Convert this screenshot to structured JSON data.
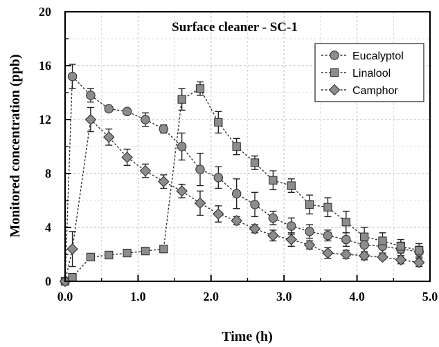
{
  "chart_data": {
    "type": "line",
    "title": "Surface cleaner - SC-1",
    "xlabel": "Time (h)",
    "ylabel": "Monitored concentration (ppb)",
    "xlim": [
      0,
      5
    ],
    "ylim": [
      0,
      20
    ],
    "x_ticks": [
      "0.0",
      "1.0",
      "2.0",
      "3.0",
      "4.0",
      "5.0"
    ],
    "y_ticks": [
      "0",
      "4",
      "8",
      "12",
      "16",
      "20"
    ],
    "grid": true,
    "legend_position": "top-right",
    "series": [
      {
        "name": "Eucalyptol",
        "marker": "circle",
        "points": [
          {
            "x": 0.0,
            "y": 0.0,
            "err": 0.0
          },
          {
            "x": 0.1,
            "y": 15.2,
            "err": 0.9
          },
          {
            "x": 0.35,
            "y": 13.8,
            "err": 0.5
          },
          {
            "x": 0.6,
            "y": 12.8,
            "err": 0.0
          },
          {
            "x": 0.85,
            "y": 12.6,
            "err": 0.0
          },
          {
            "x": 1.1,
            "y": 12.0,
            "err": 0.5
          },
          {
            "x": 1.35,
            "y": 11.3,
            "err": 0.3
          },
          {
            "x": 1.6,
            "y": 10.0,
            "err": 1.0
          },
          {
            "x": 1.85,
            "y": 8.3,
            "err": 1.2
          },
          {
            "x": 2.1,
            "y": 7.7,
            "err": 0.8
          },
          {
            "x": 2.35,
            "y": 6.5,
            "err": 1.1
          },
          {
            "x": 2.6,
            "y": 5.7,
            "err": 0.9
          },
          {
            "x": 2.85,
            "y": 4.7,
            "err": 0.5
          },
          {
            "x": 3.1,
            "y": 4.1,
            "err": 0.6
          },
          {
            "x": 3.35,
            "y": 3.7,
            "err": 0.5
          },
          {
            "x": 3.6,
            "y": 3.4,
            "err": 0.4
          },
          {
            "x": 3.85,
            "y": 3.1,
            "err": 0.5
          },
          {
            "x": 4.1,
            "y": 2.7,
            "err": 0.6
          },
          {
            "x": 4.35,
            "y": 2.6,
            "err": 0.5
          },
          {
            "x": 4.6,
            "y": 2.4,
            "err": 0.5
          },
          {
            "x": 4.85,
            "y": 2.2,
            "err": 0.4
          }
        ]
      },
      {
        "name": "Linalool",
        "marker": "square",
        "points": [
          {
            "x": 0.0,
            "y": 0.0,
            "err": 0.0
          },
          {
            "x": 0.1,
            "y": 0.3,
            "err": 0.0
          },
          {
            "x": 0.35,
            "y": 1.8,
            "err": 0.0
          },
          {
            "x": 0.6,
            "y": 1.95,
            "err": 0.0
          },
          {
            "x": 0.85,
            "y": 2.1,
            "err": 0.0
          },
          {
            "x": 1.1,
            "y": 2.25,
            "err": 0.0
          },
          {
            "x": 1.35,
            "y": 2.4,
            "err": 0.0
          },
          {
            "x": 1.6,
            "y": 13.5,
            "err": 0.8
          },
          {
            "x": 1.85,
            "y": 14.3,
            "err": 0.5
          },
          {
            "x": 2.1,
            "y": 11.8,
            "err": 0.8
          },
          {
            "x": 2.35,
            "y": 10.0,
            "err": 0.6
          },
          {
            "x": 2.6,
            "y": 8.8,
            "err": 0.5
          },
          {
            "x": 2.85,
            "y": 7.5,
            "err": 0.7
          },
          {
            "x": 3.1,
            "y": 7.1,
            "err": 0.5
          },
          {
            "x": 3.35,
            "y": 5.7,
            "err": 0.7
          },
          {
            "x": 3.6,
            "y": 5.5,
            "err": 0.7
          },
          {
            "x": 3.85,
            "y": 4.4,
            "err": 0.8
          },
          {
            "x": 4.1,
            "y": 3.3,
            "err": 0.7
          },
          {
            "x": 4.35,
            "y": 3.0,
            "err": 0.6
          },
          {
            "x": 4.6,
            "y": 2.6,
            "err": 0.5
          },
          {
            "x": 4.85,
            "y": 2.3,
            "err": 0.5
          }
        ]
      },
      {
        "name": "Camphor",
        "marker": "diamond",
        "points": [
          {
            "x": 0.0,
            "y": 0.0,
            "err": 0.0
          },
          {
            "x": 0.1,
            "y": 2.4,
            "err": 1.3
          },
          {
            "x": 0.35,
            "y": 12.0,
            "err": 0.9
          },
          {
            "x": 0.6,
            "y": 10.7,
            "err": 0.6
          },
          {
            "x": 0.85,
            "y": 9.2,
            "err": 0.6
          },
          {
            "x": 1.1,
            "y": 8.2,
            "err": 0.5
          },
          {
            "x": 1.35,
            "y": 7.4,
            "err": 0.5
          },
          {
            "x": 1.6,
            "y": 6.7,
            "err": 0.5
          },
          {
            "x": 1.85,
            "y": 5.8,
            "err": 0.9
          },
          {
            "x": 2.1,
            "y": 5.0,
            "err": 0.6
          },
          {
            "x": 2.35,
            "y": 4.5,
            "err": 0.3
          },
          {
            "x": 2.6,
            "y": 3.9,
            "err": 0.3
          },
          {
            "x": 2.85,
            "y": 3.4,
            "err": 0.4
          },
          {
            "x": 3.1,
            "y": 3.1,
            "err": 0.5
          },
          {
            "x": 3.35,
            "y": 2.7,
            "err": 0.3
          },
          {
            "x": 3.6,
            "y": 2.1,
            "err": 0.4
          },
          {
            "x": 3.85,
            "y": 2.0,
            "err": 0.3
          },
          {
            "x": 4.1,
            "y": 1.9,
            "err": 0.3
          },
          {
            "x": 4.35,
            "y": 1.8,
            "err": 0.2
          },
          {
            "x": 4.6,
            "y": 1.6,
            "err": 0.3
          },
          {
            "x": 4.85,
            "y": 1.4,
            "err": 0.3
          }
        ]
      }
    ]
  }
}
